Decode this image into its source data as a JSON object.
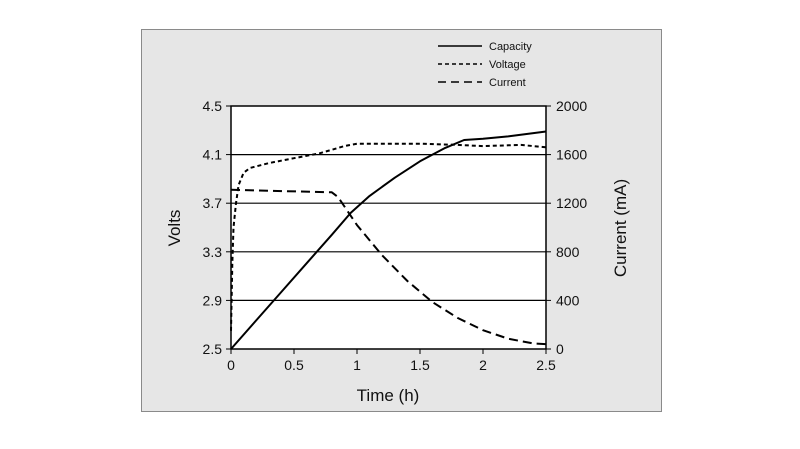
{
  "chart_data": {
    "type": "line",
    "xlabel": "Time (h)",
    "ylabel_left": "Volts",
    "ylabel_right": "Current (mA)",
    "xlim": [
      0,
      2.5
    ],
    "ylim_left": [
      2.5,
      4.5
    ],
    "ylim_right": [
      0,
      2000
    ],
    "x_ticks": [
      "0",
      "0.5",
      "1",
      "1.5",
      "2",
      "2.5"
    ],
    "y_left_ticks": [
      "2.5",
      "2.9",
      "3.3",
      "3.7",
      "4.1",
      "4.5"
    ],
    "y_right_ticks": [
      "0",
      "400",
      "800",
      "1200",
      "1600",
      "2000"
    ],
    "grid": "horizontal",
    "legend_position": "top-right",
    "series": [
      {
        "name": "Capacity",
        "style": "solid",
        "axis": "right",
        "x": [
          0,
          0.2,
          0.4,
          0.6,
          0.8,
          0.95,
          1.1,
          1.3,
          1.5,
          1.7,
          1.85,
          2.0,
          2.2,
          2.5
        ],
        "y": [
          0,
          235,
          470,
          705,
          940,
          1120,
          1260,
          1410,
          1545,
          1655,
          1720,
          1730,
          1750,
          1790
        ]
      },
      {
        "name": "Voltage",
        "style": "dotted",
        "axis": "left",
        "x": [
          0,
          0.01,
          0.02,
          0.04,
          0.06,
          0.1,
          0.15,
          0.3,
          0.5,
          0.7,
          0.9,
          1.0,
          1.5,
          1.8,
          2.0,
          2.3,
          2.5
        ],
        "y": [
          2.65,
          3.2,
          3.5,
          3.7,
          3.85,
          3.95,
          3.99,
          4.03,
          4.07,
          4.11,
          4.17,
          4.19,
          4.19,
          4.18,
          4.17,
          4.18,
          4.16
        ]
      },
      {
        "name": "Current",
        "style": "dashed",
        "axis": "right",
        "x": [
          0,
          0.8,
          0.85,
          1.0,
          1.2,
          1.4,
          1.6,
          1.8,
          2.0,
          2.2,
          2.4,
          2.5
        ],
        "y": [
          1310,
          1290,
          1250,
          1020,
          770,
          560,
          385,
          255,
          155,
          85,
          45,
          40
        ]
      }
    ]
  }
}
